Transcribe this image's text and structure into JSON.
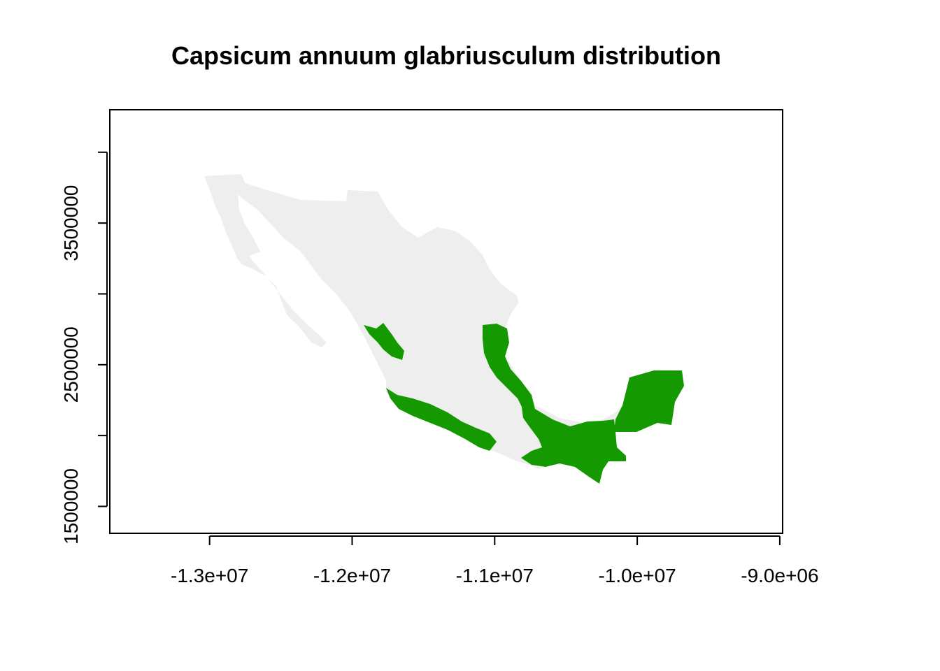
{
  "title": "Capsicum annuum glabriusculum distribution",
  "colors": {
    "land": "#eeeeee",
    "distribution": "#149a00",
    "axis": "#000000",
    "background": "#ffffff"
  },
  "chart_data": {
    "type": "heatmap",
    "title": "Capsicum annuum glabriusculum distribution",
    "xlabel": "",
    "ylabel": "",
    "xlim": [
      -13700000,
      -8980000
    ],
    "ylim": [
      1310000,
      4300000
    ],
    "x_ticks": [
      {
        "value": -13000000,
        "label": "-1.3e+07"
      },
      {
        "value": -12000000,
        "label": "-1.2e+07"
      },
      {
        "value": -11000000,
        "label": "-1.1e+07"
      },
      {
        "value": -10000000,
        "label": "-1.0e+07"
      },
      {
        "value": -9000000,
        "label": "-9.0e+06"
      }
    ],
    "y_ticks": [
      {
        "value": 1500000,
        "label": "1500000"
      },
      {
        "value": 2000000,
        "label": ""
      },
      {
        "value": 2500000,
        "label": "2500000"
      },
      {
        "value": 3000000,
        "label": ""
      },
      {
        "value": 3500000,
        "label": "3500000"
      },
      {
        "value": 4000000,
        "label": ""
      }
    ],
    "grid": false,
    "layers": [
      {
        "class": "land",
        "color": "#eeeeee"
      },
      {
        "class": "distribution",
        "color": "#149a00"
      }
    ]
  }
}
